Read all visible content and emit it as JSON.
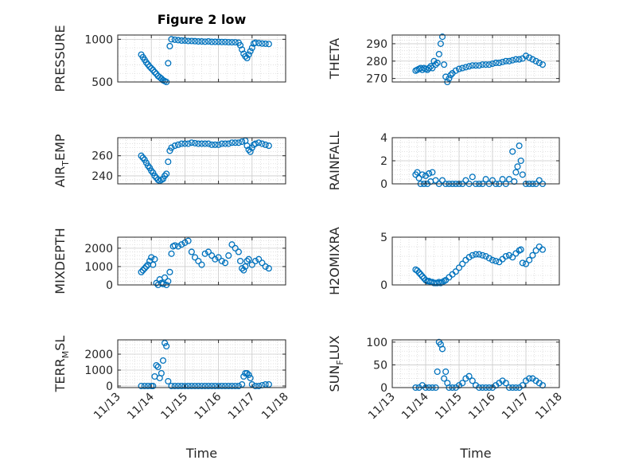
{
  "chart_data": [
    {
      "type": "scatter",
      "title": "Figure 2 low",
      "ylabel": {
        "main": "PRESSURE",
        "sub": "",
        "tail": ""
      },
      "xlim": [
        "11/13",
        "11/18"
      ],
      "xticks": [
        "11/13",
        "11/14",
        "11/15",
        "11/16",
        "11/17",
        "11/18"
      ],
      "show_xticklabels": false,
      "xlabel": "",
      "ylim": [
        500,
        1050
      ],
      "yticks": [
        "500",
        "1000"
      ],
      "ytick_values": [
        500,
        1000
      ],
      "grid": true,
      "marker_color": "#0072BD",
      "x": [
        13.7,
        13.75,
        13.8,
        13.85,
        13.9,
        13.95,
        14.0,
        14.05,
        14.1,
        14.15,
        14.2,
        14.25,
        14.3,
        14.35,
        14.4,
        14.45,
        14.5,
        14.55,
        14.6,
        14.7,
        14.8,
        14.9,
        15.0,
        15.1,
        15.2,
        15.3,
        15.4,
        15.5,
        15.6,
        15.7,
        15.8,
        15.9,
        16.0,
        16.1,
        16.2,
        16.3,
        16.4,
        16.5,
        16.6,
        16.65,
        16.7,
        16.75,
        16.8,
        16.85,
        16.9,
        16.95,
        17.0,
        17.05,
        17.1,
        17.2,
        17.3,
        17.4,
        17.5
      ],
      "y": [
        820,
        790,
        760,
        730,
        705,
        680,
        660,
        640,
        615,
        595,
        570,
        555,
        540,
        520,
        510,
        500,
        720,
        920,
        1000,
        995,
        990,
        985,
        985,
        980,
        980,
        978,
        975,
        975,
        972,
        975,
        970,
        970,
        970,
        968,
        968,
        966,
        965,
        965,
        960,
        930,
        880,
        830,
        800,
        780,
        820,
        860,
        900,
        950,
        960,
        955,
        950,
        948,
        945
      ]
    },
    {
      "type": "scatter",
      "title": "",
      "ylabel": {
        "main": "THETA",
        "sub": "",
        "tail": ""
      },
      "xlim": [
        "11/13",
        "11/18"
      ],
      "xticks": [
        "11/13",
        "11/14",
        "11/15",
        "11/16",
        "11/17",
        "11/18"
      ],
      "show_xticklabels": false,
      "xlabel": "",
      "ylim": [
        268,
        295
      ],
      "yticks": [
        "270",
        "280",
        "290"
      ],
      "ytick_values": [
        270,
        280,
        290
      ],
      "grid": true,
      "marker_color": "#0072BD",
      "x": [
        13.7,
        13.75,
        13.8,
        13.85,
        13.9,
        13.95,
        14.0,
        14.05,
        14.1,
        14.15,
        14.2,
        14.25,
        14.3,
        14.35,
        14.4,
        14.45,
        14.5,
        14.55,
        14.6,
        14.65,
        14.7,
        14.75,
        14.8,
        14.9,
        15.0,
        15.1,
        15.2,
        15.3,
        15.4,
        15.5,
        15.6,
        15.7,
        15.8,
        15.9,
        16.0,
        16.1,
        16.2,
        16.3,
        16.4,
        16.5,
        16.6,
        16.7,
        16.8,
        16.9,
        17.0,
        17.1,
        17.2,
        17.3,
        17.4,
        17.5
      ],
      "y": [
        274.5,
        275,
        275.5,
        276,
        275,
        276,
        275.5,
        275,
        276,
        277,
        276,
        280,
        278,
        279,
        284,
        290,
        294,
        278,
        271,
        268,
        270,
        272,
        273,
        274.5,
        275.5,
        276,
        276.5,
        277,
        277.5,
        277.5,
        277.5,
        278,
        278,
        278,
        278.5,
        279,
        279,
        279.5,
        280,
        280,
        280.5,
        281,
        281,
        281.5,
        283,
        282,
        281,
        280,
        279,
        278
      ]
    },
    {
      "type": "scatter",
      "title": "",
      "ylabel": {
        "main": "AIR",
        "sub": "T",
        "tail": "EMP"
      },
      "xlim": [
        "11/13",
        "11/18"
      ],
      "xticks": [
        "11/13",
        "11/14",
        "11/15",
        "11/16",
        "11/17",
        "11/18"
      ],
      "show_xticklabels": false,
      "xlabel": "",
      "ylim": [
        232,
        278
      ],
      "yticks": [
        "240",
        "260"
      ],
      "ytick_values": [
        240,
        260
      ],
      "grid": true,
      "marker_color": "#0072BD",
      "x": [
        13.7,
        13.75,
        13.8,
        13.85,
        13.9,
        13.95,
        14.0,
        14.05,
        14.1,
        14.15,
        14.2,
        14.25,
        14.3,
        14.35,
        14.4,
        14.45,
        14.5,
        14.55,
        14.6,
        14.7,
        14.8,
        14.9,
        15.0,
        15.1,
        15.2,
        15.3,
        15.4,
        15.5,
        15.6,
        15.7,
        15.8,
        15.9,
        16.0,
        16.1,
        16.2,
        16.3,
        16.4,
        16.5,
        16.6,
        16.7,
        16.8,
        16.85,
        16.9,
        16.95,
        17.0,
        17.05,
        17.1,
        17.2,
        17.3,
        17.4,
        17.5
      ],
      "y": [
        260,
        258,
        256,
        253,
        250,
        248,
        245,
        243,
        240,
        238,
        236,
        235,
        236,
        237,
        240,
        242,
        254,
        265,
        268,
        270,
        271,
        272,
        272,
        272,
        273,
        272.5,
        272,
        272,
        272,
        272,
        271,
        271,
        271,
        272,
        272,
        272,
        273,
        273,
        273,
        274,
        275,
        270,
        266,
        264,
        268,
        271,
        272,
        273,
        272,
        271,
        270
      ]
    },
    {
      "type": "scatter",
      "title": "",
      "ylabel": {
        "main": "RAINFALL",
        "sub": "",
        "tail": ""
      },
      "xlim": [
        "11/13",
        "11/18"
      ],
      "xticks": [
        "11/13",
        "11/14",
        "11/15",
        "11/16",
        "11/17",
        "11/18"
      ],
      "show_xticklabels": false,
      "xlabel": "",
      "ylim": [
        0,
        4
      ],
      "yticks": [
        "0",
        "2",
        "4"
      ],
      "ytick_values": [
        0,
        2,
        4
      ],
      "grid": true,
      "marker_color": "#0072BD",
      "x": [
        13.7,
        13.75,
        13.8,
        13.85,
        13.9,
        13.95,
        14.0,
        14.05,
        14.1,
        14.15,
        14.2,
        14.3,
        14.4,
        14.5,
        14.6,
        14.7,
        14.8,
        14.9,
        15.0,
        15.1,
        15.2,
        15.3,
        15.4,
        15.5,
        15.6,
        15.7,
        15.8,
        15.9,
        16.0,
        16.1,
        16.2,
        16.3,
        16.4,
        16.5,
        16.6,
        16.65,
        16.7,
        16.75,
        16.8,
        16.85,
        16.9,
        17.0,
        17.1,
        17.2,
        17.3,
        17.4,
        17.5
      ],
      "y": [
        0.8,
        1.0,
        0.5,
        0.0,
        0.8,
        0.0,
        0.7,
        0.0,
        0.9,
        0.2,
        1.0,
        0.3,
        0.0,
        0.3,
        0.0,
        0.0,
        0.0,
        0.0,
        0.0,
        0.0,
        0.3,
        0.0,
        0.6,
        0.0,
        0.0,
        0.0,
        0.4,
        0.0,
        0.3,
        0.0,
        0.0,
        0.4,
        0.0,
        0.4,
        2.8,
        0.2,
        1.0,
        1.5,
        3.3,
        2.0,
        0.8,
        0.0,
        0.0,
        0.0,
        0.0,
        0.3,
        0.0
      ]
    },
    {
      "type": "scatter",
      "title": "",
      "ylabel": {
        "main": "MIXDEPTH",
        "sub": "",
        "tail": ""
      },
      "xlim": [
        "11/13",
        "11/18"
      ],
      "xticks": [
        "11/13",
        "11/14",
        "11/15",
        "11/16",
        "11/17",
        "11/18"
      ],
      "show_xticklabels": false,
      "xlabel": "",
      "ylim": [
        0,
        2600
      ],
      "yticks": [
        "0",
        "1000",
        "2000"
      ],
      "ytick_values": [
        0,
        1000,
        2000
      ],
      "grid": true,
      "marker_color": "#0072BD",
      "x": [
        13.7,
        13.75,
        13.8,
        13.85,
        13.9,
        13.95,
        14.0,
        14.05,
        14.1,
        14.15,
        14.2,
        14.25,
        14.3,
        14.35,
        14.4,
        14.45,
        14.5,
        14.55,
        14.6,
        14.65,
        14.7,
        14.8,
        14.9,
        15.0,
        15.1,
        15.2,
        15.3,
        15.4,
        15.5,
        15.6,
        15.7,
        15.8,
        15.9,
        16.0,
        16.1,
        16.2,
        16.3,
        16.4,
        16.5,
        16.6,
        16.65,
        16.7,
        16.75,
        16.8,
        16.85,
        16.9,
        17.0,
        17.1,
        17.2,
        17.3,
        17.4,
        17.5
      ],
      "y": [
        700,
        800,
        900,
        1000,
        1100,
        1300,
        1500,
        1100,
        1400,
        100,
        0,
        300,
        100,
        50,
        400,
        0,
        200,
        700,
        1700,
        2100,
        2150,
        2100,
        2200,
        2300,
        2400,
        1800,
        1500,
        1300,
        1100,
        1700,
        1800,
        1600,
        1400,
        1500,
        1300,
        1200,
        1600,
        2200,
        2000,
        1800,
        1300,
        900,
        800,
        1000,
        1300,
        1400,
        1100,
        1300,
        1400,
        1200,
        1000,
        900
      ]
    },
    {
      "type": "scatter",
      "title": "",
      "ylabel": {
        "main": "H2OMIXRA",
        "sub": "",
        "tail": ""
      },
      "xlim": [
        "11/13",
        "11/18"
      ],
      "xticks": [
        "11/13",
        "11/14",
        "11/15",
        "11/16",
        "11/17",
        "11/18"
      ],
      "show_xticklabels": false,
      "xlabel": "",
      "ylim": [
        0,
        5
      ],
      "yticks": [
        "0",
        "5"
      ],
      "ytick_values": [
        0,
        5
      ],
      "grid": true,
      "marker_color": "#0072BD",
      "x": [
        13.7,
        13.75,
        13.8,
        13.85,
        13.9,
        13.95,
        14.0,
        14.05,
        14.1,
        14.15,
        14.2,
        14.25,
        14.3,
        14.35,
        14.4,
        14.45,
        14.5,
        14.55,
        14.6,
        14.7,
        14.8,
        14.9,
        15.0,
        15.1,
        15.2,
        15.3,
        15.4,
        15.5,
        15.6,
        15.7,
        15.8,
        15.9,
        16.0,
        16.1,
        16.2,
        16.3,
        16.4,
        16.5,
        16.6,
        16.7,
        16.8,
        16.85,
        16.9,
        17.0,
        17.1,
        17.2,
        17.3,
        17.4,
        17.5
      ],
      "y": [
        1.6,
        1.5,
        1.3,
        1.1,
        0.9,
        0.7,
        0.5,
        0.4,
        0.4,
        0.3,
        0.3,
        0.2,
        0.2,
        0.2,
        0.3,
        0.2,
        0.3,
        0.4,
        0.5,
        0.8,
        1.1,
        1.4,
        1.8,
        2.2,
        2.6,
        2.9,
        3.1,
        3.2,
        3.2,
        3.1,
        3.0,
        2.8,
        2.6,
        2.5,
        2.4,
        2.7,
        3.0,
        3.1,
        2.9,
        3.3,
        3.6,
        3.7,
        2.3,
        2.2,
        2.6,
        3.1,
        3.6,
        4.0,
        3.7
      ]
    },
    {
      "type": "scatter",
      "title": "",
      "ylabel": {
        "main": "TERR",
        "sub": "M",
        "tail": "SL"
      },
      "xlim": [
        "11/13",
        "11/18"
      ],
      "xticks": [
        "11/13",
        "11/14",
        "11/15",
        "11/16",
        "11/17",
        "11/18"
      ],
      "show_xticklabels": true,
      "xlabel": "Time",
      "ylim": [
        -100,
        2900
      ],
      "yticks": [
        "0",
        "1000",
        "2000"
      ],
      "ytick_values": [
        0,
        1000,
        2000
      ],
      "grid": true,
      "marker_color": "#0072BD",
      "x": [
        13.7,
        13.8,
        13.9,
        14.0,
        14.05,
        14.1,
        14.15,
        14.2,
        14.25,
        14.3,
        14.35,
        14.4,
        14.45,
        14.5,
        14.6,
        14.7,
        14.8,
        14.9,
        15.0,
        15.1,
        15.2,
        15.3,
        15.4,
        15.5,
        15.6,
        15.7,
        15.8,
        15.9,
        16.0,
        16.1,
        16.2,
        16.3,
        16.4,
        16.5,
        16.6,
        16.7,
        16.75,
        16.8,
        16.85,
        16.9,
        16.95,
        17.0,
        17.1,
        17.2,
        17.3,
        17.4,
        17.5
      ],
      "y": [
        0,
        0,
        0,
        0,
        0,
        600,
        1300,
        1200,
        500,
        800,
        1600,
        2700,
        2500,
        300,
        0,
        0,
        0,
        0,
        0,
        0,
        0,
        0,
        0,
        0,
        0,
        0,
        0,
        0,
        0,
        0,
        0,
        0,
        0,
        0,
        0,
        100,
        600,
        800,
        800,
        700,
        500,
        100,
        0,
        0,
        50,
        100,
        100
      ]
    },
    {
      "type": "scatter",
      "title": "",
      "ylabel": {
        "main": "SUN",
        "sub": "F",
        "tail": "LUX"
      },
      "xlim": [
        "11/13",
        "11/18"
      ],
      "xticks": [
        "11/13",
        "11/14",
        "11/15",
        "11/16",
        "11/17",
        "11/18"
      ],
      "show_xticklabels": true,
      "xlabel": "Time",
      "ylim": [
        0,
        105
      ],
      "yticks": [
        "0",
        "50",
        "100"
      ],
      "ytick_values": [
        0,
        50,
        100
      ],
      "grid": true,
      "marker_color": "#0072BD",
      "x": [
        13.7,
        13.8,
        13.9,
        14.0,
        14.1,
        14.2,
        14.3,
        14.35,
        14.4,
        14.45,
        14.5,
        14.55,
        14.6,
        14.65,
        14.7,
        14.8,
        14.9,
        15.0,
        15.1,
        15.2,
        15.3,
        15.4,
        15.5,
        15.6,
        15.7,
        15.8,
        15.9,
        16.0,
        16.1,
        16.2,
        16.3,
        16.4,
        16.5,
        16.6,
        16.7,
        16.8,
        16.9,
        17.0,
        17.1,
        17.2,
        17.3,
        17.4,
        17.5
      ],
      "y": [
        0,
        0,
        5,
        0,
        0,
        0,
        0,
        35,
        100,
        95,
        85,
        20,
        35,
        10,
        0,
        0,
        0,
        5,
        10,
        20,
        25,
        15,
        5,
        0,
        0,
        0,
        0,
        0,
        5,
        10,
        15,
        10,
        0,
        0,
        0,
        0,
        5,
        15,
        20,
        20,
        15,
        10,
        5
      ]
    }
  ]
}
